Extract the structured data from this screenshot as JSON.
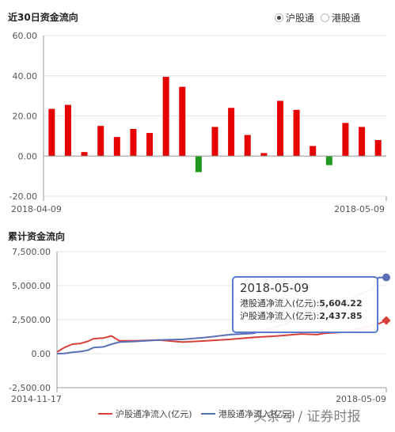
{
  "chart_top": {
    "title": "近30日资金流向",
    "toggle": [
      {
        "label": "沪股通",
        "selected": true
      },
      {
        "label": "港股通",
        "selected": false
      }
    ]
  },
  "chart_bottom": {
    "title": "累计资金流向",
    "legend": [
      "沪股通净流入(亿元)",
      "港股通净流入(亿元)"
    ]
  },
  "tooltip": {
    "date": "2018-05-09",
    "line1_label": "港股通净流入(亿元)",
    "line1_value": "5,604.22",
    "line2_label": "沪股通净流入(亿元)",
    "line2_value": "2,437.85"
  },
  "watermark": "头条号 / 证券时报",
  "colors": {
    "positive_bar": "#e60000",
    "negative_bar": "#1e9a1e",
    "sh_line": "#d9403a",
    "hk_line": "#5b6fb6"
  },
  "chart_data": [
    {
      "type": "bar",
      "ylim": [
        -20,
        60
      ],
      "yticks": [
        "-20.00",
        "0.00",
        "20.00",
        "40.00",
        "60.00"
      ],
      "x_start_label": "2018-04-09",
      "x_end_label": "2018-05-09",
      "values": [
        23.5,
        25.5,
        2,
        15,
        9.5,
        13.5,
        11.5,
        39.5,
        34.5,
        -8,
        14.5,
        24,
        10.5,
        1.5,
        27.5,
        23,
        5,
        -4.5,
        16.5,
        14.5,
        8
      ],
      "grid": true
    },
    {
      "type": "line",
      "ylim": [
        -2500,
        7500
      ],
      "yticks": [
        "-2,500.00",
        "0.00",
        "2,500.00",
        "5,000.00",
        "7,500.00"
      ],
      "x_start_label": "2014-11-17",
      "x_end_label": "2018-05-09",
      "x": [
        "2014-11-17",
        "2014-12-15",
        "2015-01-15",
        "2015-02-15",
        "2015-03-15",
        "2015-04-07",
        "2015-05-15",
        "2015-06-15",
        "2015-07-15",
        "2015-09-15",
        "2015-12-15",
        "2016-03-15",
        "2016-06-15",
        "2016-09-15",
        "2016-12-15",
        "2017-03-15",
        "2017-06-15",
        "2017-08-15",
        "2017-09-15",
        "2017-12-15",
        "2018-01-15",
        "2018-03-15",
        "2018-04-09",
        "2018-05-09"
      ],
      "series": [
        {
          "name": "沪股通净流入(亿元)",
          "values": [
            120,
            450,
            700,
            750,
            900,
            1100,
            1150,
            1300,
            950,
            950,
            1000,
            850,
            950,
            1050,
            1200,
            1300,
            1450,
            1400,
            1500,
            1600,
            1800,
            2050,
            2200,
            2437.85
          ]
        },
        {
          "name": "港股通净流入(亿元)",
          "values": [
            0,
            20,
            100,
            150,
            250,
            450,
            500,
            700,
            850,
            900,
            1000,
            1050,
            1200,
            1400,
            1500,
            2000,
            2600,
            3000,
            3500,
            3900,
            4300,
            4700,
            5600,
            5604.22
          ]
        }
      ],
      "grid": true
    }
  ]
}
